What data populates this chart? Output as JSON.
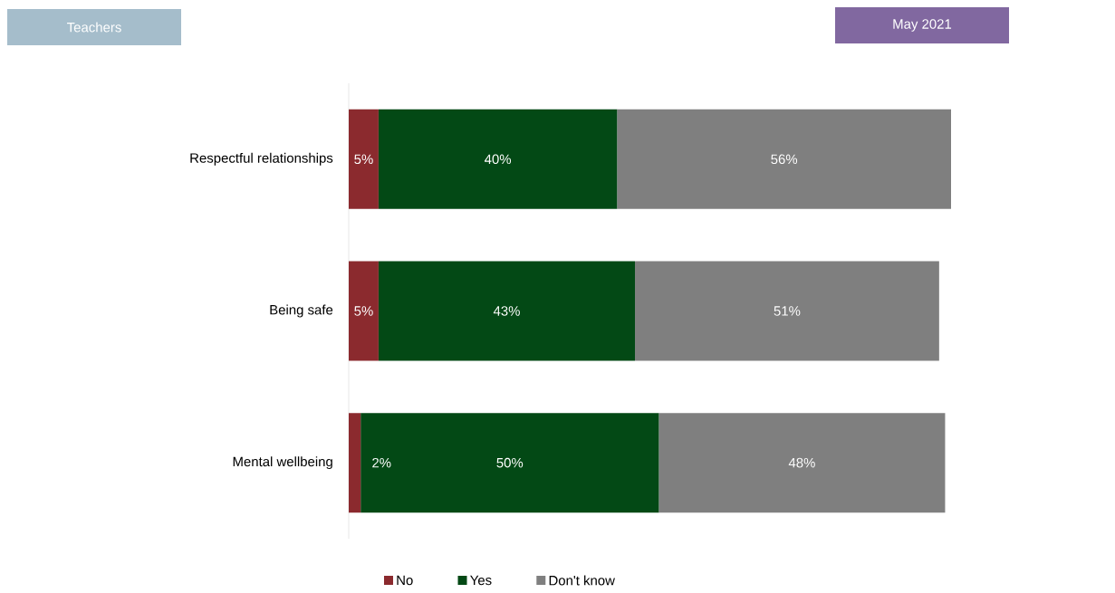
{
  "chart_data": {
    "type": "bar",
    "title": "Teachers",
    "subtitle": "May 2021",
    "orientation": "horizontal",
    "stacked": true,
    "legend": "bottom",
    "categories": [
      "Respectful relationships",
      "Being safe",
      "Mental wellbeing"
    ],
    "series": [
      {
        "name": "No",
        "color": "#8b2a2e",
        "values": [
          5,
          5,
          2
        ],
        "value_labels": [
          "5%",
          "5%",
          "2%"
        ]
      },
      {
        "name": "Yes",
        "color": "#034915",
        "values": [
          40,
          43,
          50
        ],
        "value_labels": [
          "40%",
          "43%",
          "50%"
        ]
      },
      {
        "name": "Don't know",
        "color": "#7f7f7f",
        "values": [
          56,
          51,
          48
        ],
        "value_labels": [
          "56%",
          "51%",
          "48%"
        ]
      }
    ]
  }
}
